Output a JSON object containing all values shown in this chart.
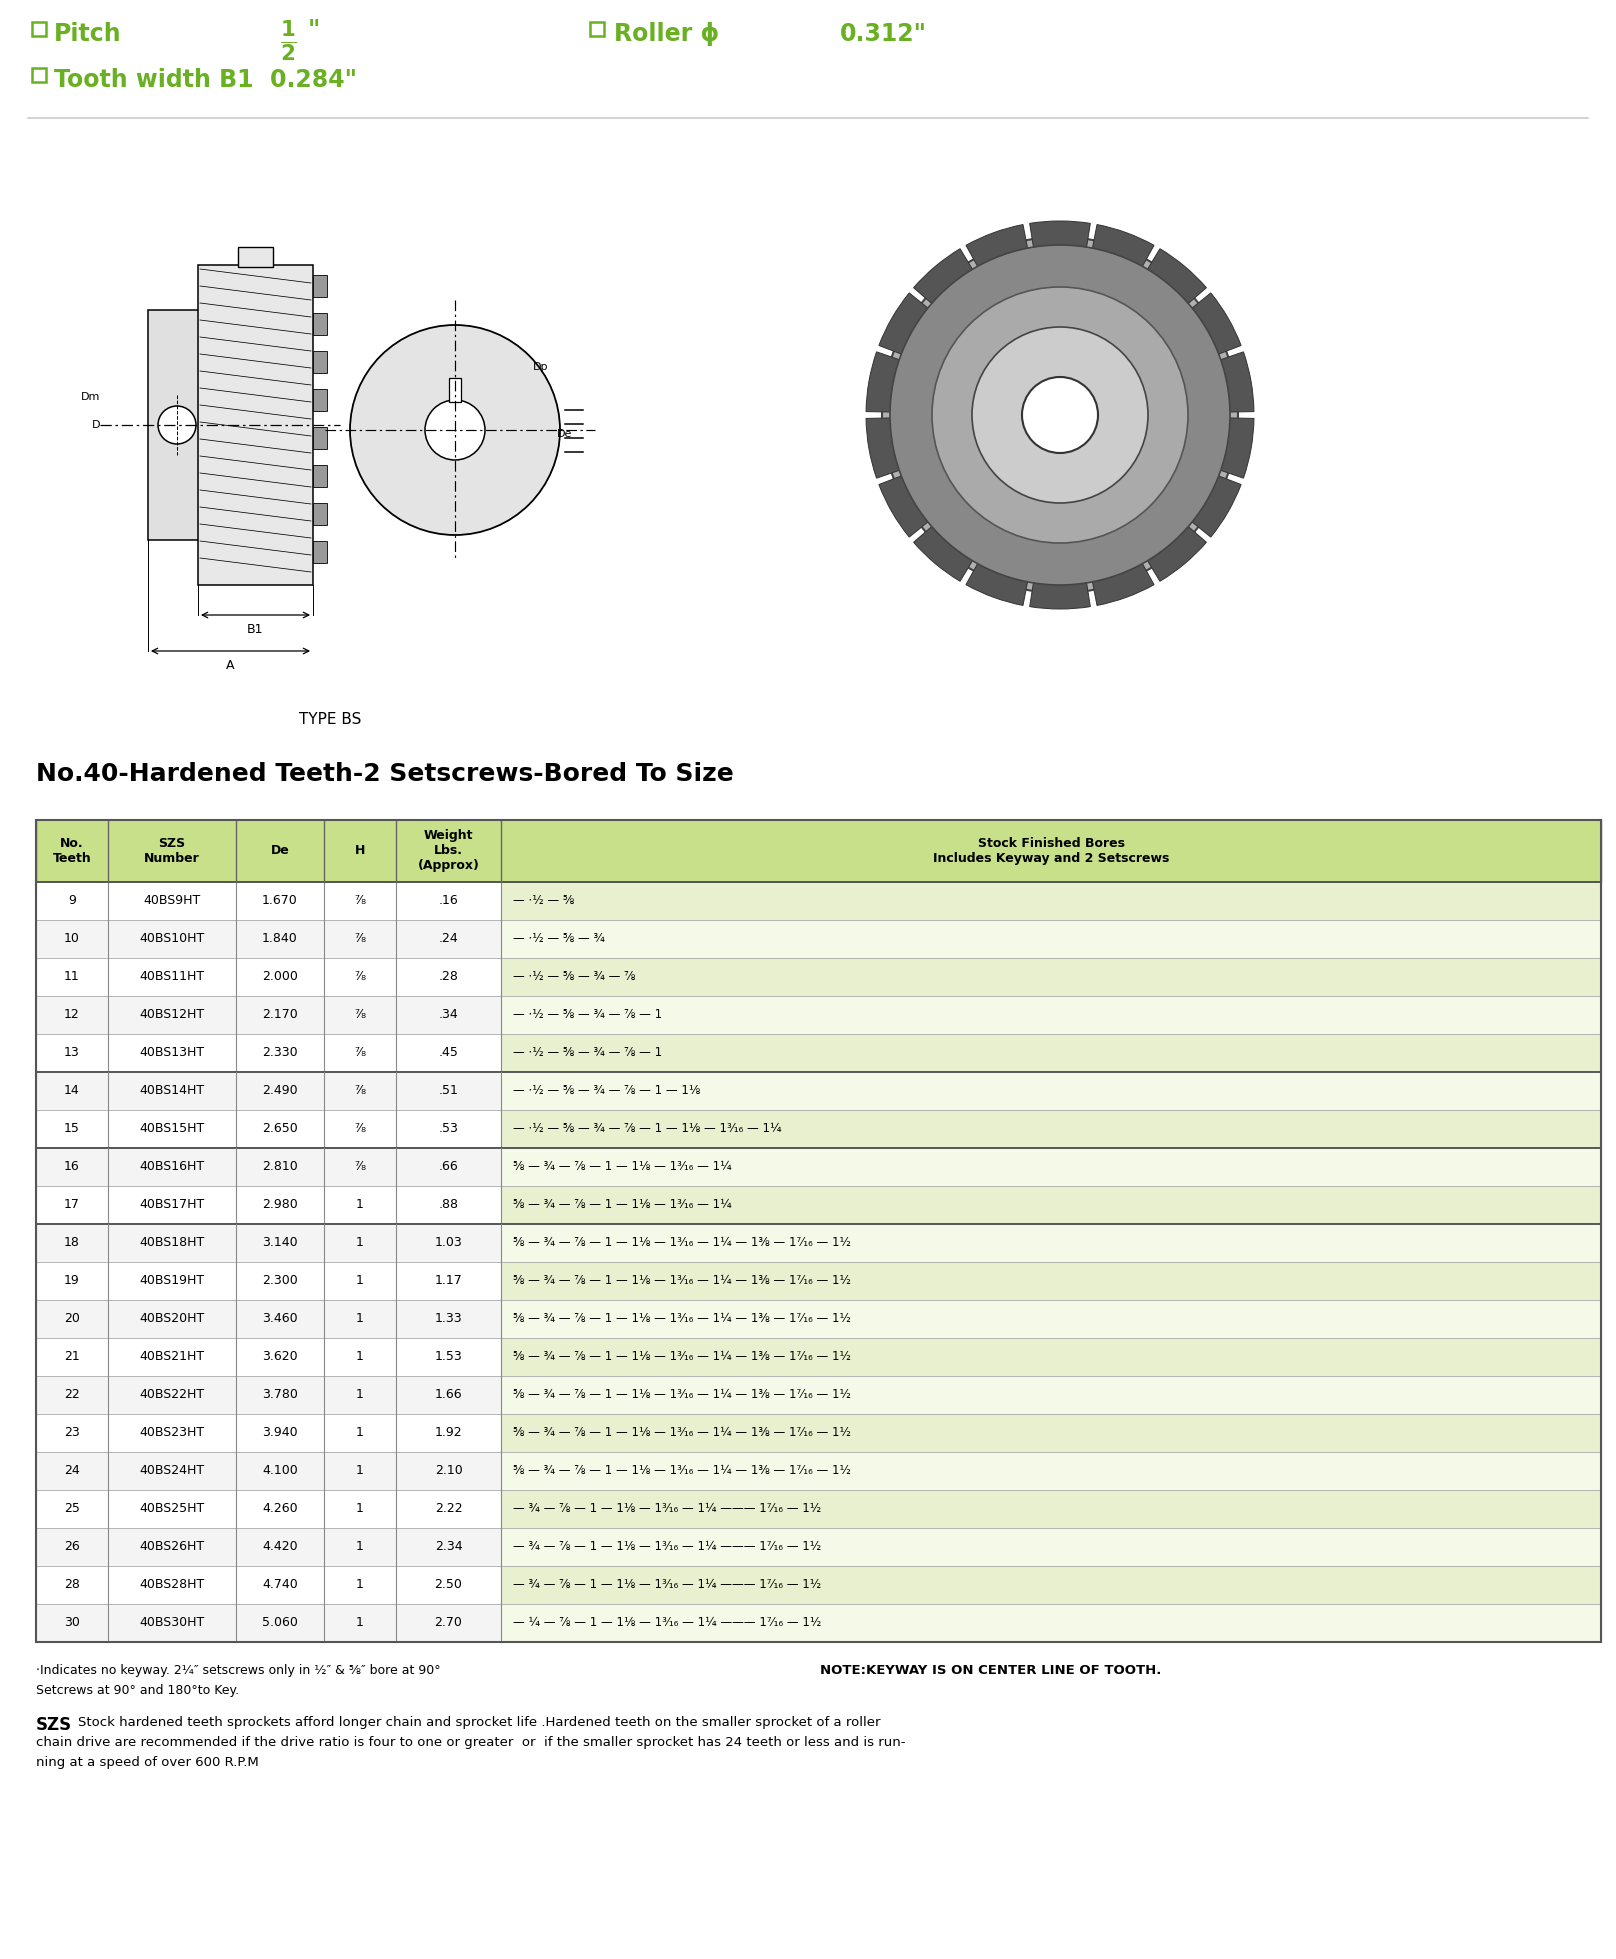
{
  "title_line": "No.40-Hardened Teeth-2 Setscrews-Bored To Size",
  "pitch_label": "Pitch",
  "pitch_sup": "1",
  "pitch_sub": "2",
  "pitch_inch": "\"",
  "roller_label": "Roller ϕ",
  "roller_value": "0.312\"",
  "tooth_label": "Tooth width B1",
  "tooth_value": "0.284\"",
  "type_label": "TYPE BS",
  "green_color": "#6ab023",
  "header_bg": "#c8e08a",
  "row_bg_even": "#e8f0d0",
  "row_bg_odd": "#f5fae8",
  "border_color": "#888888",
  "col_headers": [
    "No.\nTeeth",
    "SZS\nNumber",
    "De",
    "H",
    "Weight\nLbs.\n(Approx)",
    "Stock Finished Bores\nIncludes Keyway and 2 Setscrews"
  ],
  "rows": [
    [
      "9",
      "40BS9HT",
      "1.670",
      "⁷⁄₈",
      ".16",
      "— ⋅½ — ⅝"
    ],
    [
      "10",
      "40BS10HT",
      "1.840",
      "⁷⁄₈",
      ".24",
      "— ⋅½ — ⅝ — ¾"
    ],
    [
      "11",
      "40BS11HT",
      "2.000",
      "⁷⁄₈",
      ".28",
      "— ⋅½ — ⅝ — ¾ — ⅞"
    ],
    [
      "12",
      "40BS12HT",
      "2.170",
      "⁷⁄₈",
      ".34",
      "— ⋅½ — ⅝ — ¾ — ⅞ — 1"
    ],
    [
      "13",
      "40BS13HT",
      "2.330",
      "⁷⁄₈",
      ".45",
      "— ⋅½ — ⅝ — ¾ — ⅞ — 1"
    ],
    [
      "14",
      "40BS14HT",
      "2.490",
      "⁷⁄₈",
      ".51",
      "— ⋅½ — ⅝ — ¾ — ⅞ — 1 — 1⅛"
    ],
    [
      "15",
      "40BS15HT",
      "2.650",
      "⁷⁄₈",
      ".53",
      "— ⋅½ — ⅝ — ¾ — ⅞ — 1 — 1⅛ — 1³⁄₁₆ — 1¼"
    ],
    [
      "16",
      "40BS16HT",
      "2.810",
      "⁷⁄₈",
      ".66",
      "⅝ — ¾ — ⅞ — 1 — 1⅛ — 1³⁄₁₆ — 1¼"
    ],
    [
      "17",
      "40BS17HT",
      "2.980",
      "1",
      ".88",
      "⅝ — ¾ — ⅞ — 1 — 1⅛ — 1³⁄₁₆ — 1¼"
    ],
    [
      "18",
      "40BS18HT",
      "3.140",
      "1",
      "1.03",
      "⅝ — ¾ — ⅞ — 1 — 1⅛ — 1³⁄₁₆ — 1¼ — 1⅜ — 1⁷⁄₁₆ — 1½"
    ],
    [
      "19",
      "40BS19HT",
      "2.300",
      "1",
      "1.17",
      "⅝ — ¾ — ⅞ — 1 — 1⅛ — 1³⁄₁₆ — 1¼ — 1⅜ — 1⁷⁄₁₆ — 1½"
    ],
    [
      "20",
      "40BS20HT",
      "3.460",
      "1",
      "1.33",
      "⅝ — ¾ — ⅞ — 1 — 1⅛ — 1³⁄₁₆ — 1¼ — 1⅜ — 1⁷⁄₁₆ — 1½"
    ],
    [
      "21",
      "40BS21HT",
      "3.620",
      "1",
      "1.53",
      "⅝ — ¾ — ⅞ — 1 — 1⅛ — 1³⁄₁₆ — 1¼ — 1⅜ — 1⁷⁄₁₆ — 1½"
    ],
    [
      "22",
      "40BS22HT",
      "3.780",
      "1",
      "1.66",
      "⅝ — ¾ — ⅞ — 1 — 1⅛ — 1³⁄₁₆ — 1¼ — 1⅜ — 1⁷⁄₁₆ — 1½"
    ],
    [
      "23",
      "40BS23HT",
      "3.940",
      "1",
      "1.92",
      "⅝ — ¾ — ⅞ — 1 — 1⅛ — 1³⁄₁₆ — 1¼ — 1⅜ — 1⁷⁄₁₆ — 1½"
    ],
    [
      "24",
      "40BS24HT",
      "4.100",
      "1",
      "2.10",
      "⅝ — ¾ — ⅞ — 1 — 1⅛ — 1³⁄₁₆ — 1¼ — 1⅜ — 1⁷⁄₁₆ — 1½"
    ],
    [
      "25",
      "40BS25HT",
      "4.260",
      "1",
      "2.22",
      "— ¾ — ⅞ — 1 — 1⅛ — 1³⁄₁₆ — 1¼ ——— 1⁷⁄₁₆ — 1½"
    ],
    [
      "26",
      "40BS26HT",
      "4.420",
      "1",
      "2.34",
      "— ¾ — ⅞ — 1 — 1⅛ — 1³⁄₁₆ — 1¼ ——— 1⁷⁄₁₆ — 1½"
    ],
    [
      "28",
      "40BS28HT",
      "4.740",
      "1",
      "2.50",
      "— ¾ — ⅞ — 1 — 1⅛ — 1³⁄₁₆ — 1¼ ——— 1⁷⁄₁₆ — 1½"
    ],
    [
      "30",
      "40BS30HT",
      "5.060",
      "1",
      "2.70",
      "— ¼ — ⅞ — 1 — 1⅛ — 1³⁄₁₆ — 1¼ ——— 1⁷⁄₁₆ — 1½"
    ]
  ],
  "footnote1": "⋅Indicates no keyway. 2¹⁄₄″ setscrews only in ½″ & ⅝″ bore at 90°",
  "footnote2": "Setcrews at 90° and 180°to Key.",
  "footnote3": "NOTE:KEYWAY IS ON CENTER LINE OF TOOTH.",
  "footnote4_bold": "SZS",
  "footnote4_text": " Stock hardened teeth sprockets afford longer chain and sprocket life .Hardened teeth on the smaller sprocket of a roller\nchain drive are recommended if the drive ratio is four to one or greater  or  if the smaller sprocket has 24 teeth or less and is run-\nning at a speed of over 600 R.P.M"
}
